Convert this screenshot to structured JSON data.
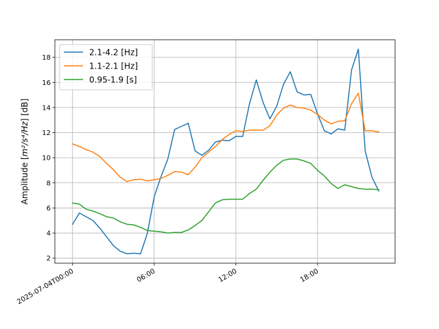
{
  "chart_data": {
    "type": "line",
    "title": "",
    "xlabel": "",
    "ylabel_prefix": "Amplitude [",
    "ylabel_math": "m²/s⁴/Hz",
    "ylabel_suffix": "] [dB]",
    "x_unit": "hours since 2025-07-04T00:00",
    "xlim": [
      -1.3,
      23.7
    ],
    "ylim": [
      1.6,
      19.4
    ],
    "x_ticks": [
      {
        "x": 0,
        "label": "2025-07-04T00:00"
      },
      {
        "x": 6,
        "label": "06:00"
      },
      {
        "x": 12,
        "label": "12:00"
      },
      {
        "x": 18,
        "label": "18:00"
      }
    ],
    "y_ticks": [
      {
        "y": 2,
        "label": "2"
      },
      {
        "y": 4,
        "label": "4"
      },
      {
        "y": 6,
        "label": "6"
      },
      {
        "y": 8,
        "label": "8"
      },
      {
        "y": 10,
        "label": "10"
      },
      {
        "y": 12,
        "label": "12"
      },
      {
        "y": 14,
        "label": "14"
      },
      {
        "y": 16,
        "label": "16"
      },
      {
        "y": 18,
        "label": "18"
      }
    ],
    "grid": true,
    "legend_position": "top-left",
    "x": [
      0,
      0.5,
      1,
      1.5,
      2,
      2.5,
      3,
      3.5,
      4,
      4.5,
      5,
      5.5,
      6,
      6.5,
      7,
      7.5,
      8,
      8.5,
      9,
      9.5,
      10,
      10.5,
      11,
      11.5,
      12,
      12.5,
      13,
      13.5,
      14,
      14.5,
      15,
      15.5,
      16,
      16.5,
      17,
      17.5,
      18,
      18.5,
      19,
      19.5,
      20,
      20.5,
      21,
      21.5,
      22,
      22.5
    ],
    "series": [
      {
        "name": "2.1-4.2 [Hz]",
        "color": "#1f77b4",
        "values": [
          4.7,
          5.6,
          5.3,
          5.0,
          4.4,
          3.7,
          3.0,
          2.55,
          2.35,
          2.4,
          2.35,
          4.0,
          6.9,
          8.5,
          9.9,
          12.25,
          12.5,
          12.75,
          10.55,
          10.2,
          10.6,
          11.25,
          11.4,
          11.35,
          11.7,
          11.7,
          14.3,
          16.2,
          14.4,
          13.1,
          14.1,
          15.85,
          16.85,
          15.25,
          15.0,
          15.05,
          13.5,
          12.15,
          11.9,
          12.3,
          12.2,
          17.0,
          18.65,
          10.55,
          8.45,
          7.35
        ]
      },
      {
        "name": "1.1-2.1 [Hz]",
        "color": "#ff7f0e",
        "values": [
          11.1,
          10.9,
          10.65,
          10.45,
          10.1,
          9.55,
          9.05,
          8.45,
          8.1,
          8.25,
          8.3,
          8.15,
          8.25,
          8.35,
          8.6,
          8.9,
          8.85,
          8.65,
          9.25,
          10.0,
          10.45,
          10.9,
          11.45,
          11.85,
          12.15,
          12.1,
          12.2,
          12.2,
          12.2,
          12.55,
          13.4,
          13.95,
          14.2,
          14.0,
          13.95,
          13.8,
          13.45,
          13.0,
          12.7,
          12.9,
          12.95,
          14.3,
          15.15,
          12.15,
          12.15,
          12.05
        ]
      },
      {
        "name": "0.95-1.9 [s]",
        "color": "#2ca02c",
        "values": [
          6.4,
          6.3,
          5.9,
          5.75,
          5.55,
          5.3,
          5.2,
          4.9,
          4.7,
          4.65,
          4.45,
          4.2,
          4.15,
          4.1,
          4.0,
          4.05,
          4.05,
          4.25,
          4.6,
          5.0,
          5.7,
          6.4,
          6.65,
          6.7,
          6.7,
          6.7,
          7.15,
          7.5,
          8.2,
          8.85,
          9.4,
          9.8,
          9.9,
          9.9,
          9.75,
          9.55,
          9.0,
          8.55,
          7.95,
          7.55,
          7.85,
          7.7,
          7.55,
          7.5,
          7.5,
          7.45
        ]
      }
    ]
  }
}
